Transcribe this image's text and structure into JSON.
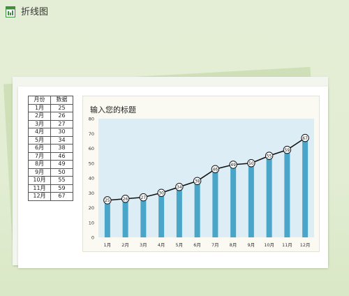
{
  "app": {
    "title": "折线图",
    "icon": "spreadsheet-chart-icon"
  },
  "table": {
    "headers": [
      "月份",
      "数据"
    ],
    "rows": [
      [
        "1月",
        "25"
      ],
      [
        "2月",
        "26"
      ],
      [
        "3月",
        "27"
      ],
      [
        "4月",
        "30"
      ],
      [
        "5月",
        "34"
      ],
      [
        "6月",
        "38"
      ],
      [
        "7月",
        "46"
      ],
      [
        "8月",
        "49"
      ],
      [
        "9月",
        "50"
      ],
      [
        "10月",
        "55"
      ],
      [
        "11月",
        "59"
      ],
      [
        "12月",
        "67"
      ]
    ]
  },
  "chart_data": {
    "type": "bar",
    "title": "输入您的标题",
    "categories": [
      "1月",
      "2月",
      "3月",
      "4月",
      "5月",
      "6月",
      "7月",
      "8月",
      "9月",
      "10月",
      "11月",
      "12月"
    ],
    "series": [
      {
        "type": "bar",
        "values": [
          25,
          26,
          27,
          30,
          34,
          38,
          46,
          49,
          50,
          55,
          59,
          67
        ]
      },
      {
        "type": "line",
        "values": [
          25,
          26,
          27,
          30,
          34,
          38,
          46,
          49,
          50,
          55,
          59,
          67
        ]
      }
    ],
    "ylim": [
      0,
      80
    ],
    "yticks": [
      0,
      10,
      20,
      30,
      40,
      50,
      60,
      70,
      80
    ],
    "grid": false,
    "legend": "none",
    "colors": {
      "bar": "#4aa6c8",
      "line": "#111111",
      "plot_bg": "#dcedf6"
    }
  }
}
